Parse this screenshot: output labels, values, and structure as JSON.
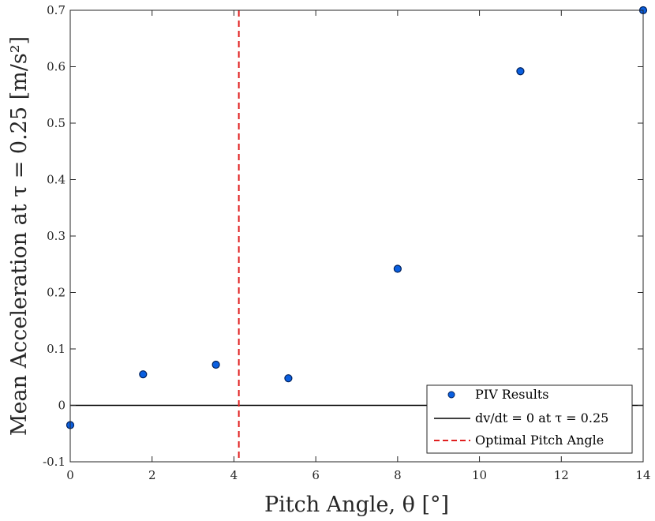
{
  "chart_data": {
    "type": "scatter",
    "title": "",
    "xlabel": "Pitch Angle, θ [°]",
    "ylabel": "Mean Acceleration at τ = 0.25 [m/s²]",
    "xlim": [
      0,
      14
    ],
    "ylim": [
      -0.1,
      0.7
    ],
    "xticks": [
      0,
      2,
      4,
      6,
      8,
      10,
      12,
      14
    ],
    "xtick_labels": [
      "0",
      "2",
      "4",
      "6",
      "8",
      "10",
      "12",
      "14"
    ],
    "yticks": [
      -0.1,
      0,
      0.1,
      0.2,
      0.3,
      0.4,
      0.5,
      0.6,
      0.7
    ],
    "ytick_labels": [
      "-0.1",
      "0",
      "0.1",
      "0.2",
      "0.3",
      "0.4",
      "0.5",
      "0.6",
      "0.7"
    ],
    "grid": false,
    "series": [
      {
        "name": "PIV Results",
        "kind": "scatter",
        "color": "#0a5fe0",
        "edge_color": "#00205a",
        "x": [
          0,
          1.78,
          3.56,
          5.33,
          8,
          11,
          14
        ],
        "y": [
          -0.035,
          0.055,
          0.072,
          0.048,
          0.242,
          0.592,
          0.7
        ]
      },
      {
        "name": "dv/dt = 0 at τ = 0.25",
        "kind": "hline",
        "color": "#000000",
        "y": 0
      },
      {
        "name": "Optimal Pitch Angle",
        "kind": "vline",
        "style": "dashed",
        "color": "#e02020",
        "x": 4.12
      }
    ],
    "legend": {
      "position": "bottom-right",
      "entries": [
        "PIV Results",
        "dv/dt = 0 at τ = 0.25",
        "Optimal Pitch Angle"
      ]
    }
  }
}
